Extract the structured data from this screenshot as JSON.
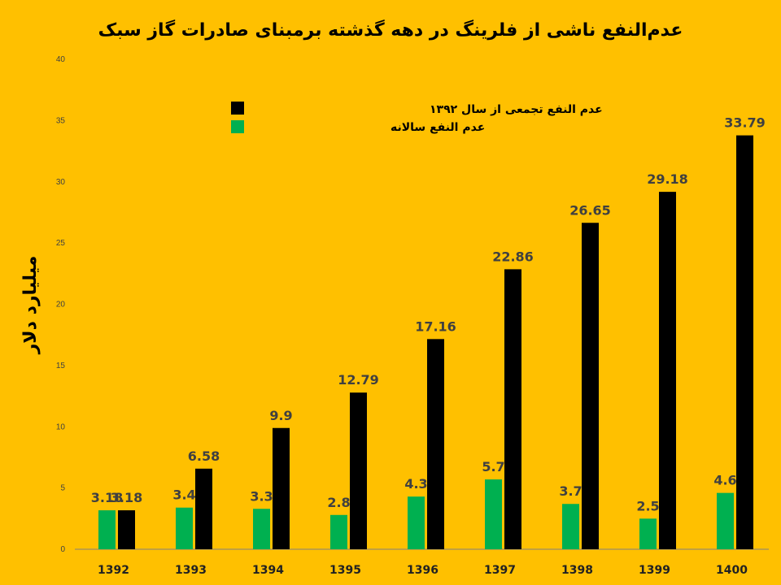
{
  "chart_data": {
    "type": "bar",
    "title": "عدم‌النفع ناشی از فلرینگ در دهه گذشته برمبنای صادرات گاز سبک",
    "ylabel": "میلیارد دلار",
    "xlabel": "",
    "ylim": [
      0,
      40
    ],
    "yticks": [
      0,
      5,
      10,
      15,
      20,
      25,
      30,
      35,
      40
    ],
    "grid": false,
    "legend_position": "top-left",
    "categories": [
      "1392",
      "1393",
      "1394",
      "1395",
      "1396",
      "1397",
      "1398",
      "1399",
      "1400"
    ],
    "series": [
      {
        "name": "عدم النفع سالانه",
        "color": "#00B050",
        "values": [
          3.18,
          3.4,
          3.3,
          2.8,
          4.3,
          5.7,
          3.7,
          2.5,
          4.6
        ],
        "labels": [
          "3.18",
          "3.4",
          "3.3",
          "2.8",
          "4.3",
          "5.7",
          "3.7",
          "2.5",
          "4.6"
        ]
      },
      {
        "name": "عدم النفع تجمعی از سال ۱۳۹۲",
        "color": "#000000",
        "values": [
          3.18,
          6.58,
          9.9,
          12.79,
          17.16,
          22.86,
          26.65,
          29.18,
          33.79
        ],
        "labels": [
          "3.18",
          "6.58",
          "9.9",
          "12.79",
          "17.16",
          "22.86",
          "26.65",
          "29.18",
          "33.79"
        ]
      }
    ],
    "colors": {
      "background": "#FFC000",
      "axis": "#808080"
    }
  }
}
